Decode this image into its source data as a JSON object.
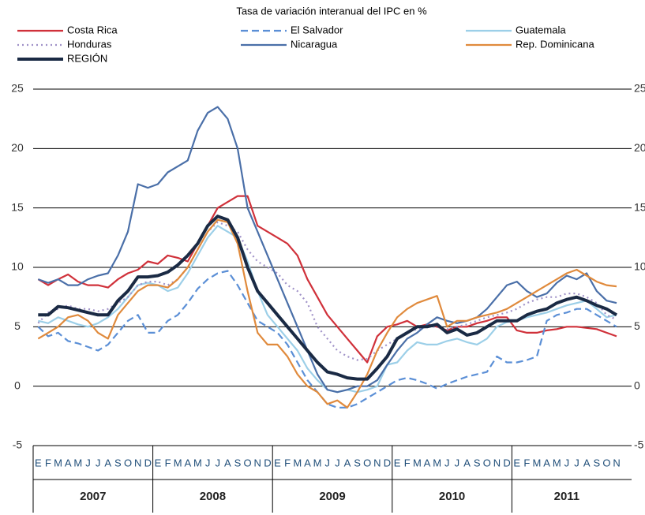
{
  "chart_data": {
    "type": "line",
    "title": "Tasa de variación interanual del IPC en %",
    "categories": [
      "E",
      "F",
      "M",
      "A",
      "M",
      "J",
      "J",
      "A",
      "S",
      "O",
      "N",
      "D",
      "E",
      "F",
      "M",
      "A",
      "M",
      "J",
      "J",
      "A",
      "S",
      "O",
      "N",
      "D",
      "E",
      "F",
      "M",
      "A",
      "M",
      "J",
      "J",
      "A",
      "S",
      "O",
      "N",
      "D",
      "E",
      "F",
      "M",
      "A",
      "M",
      "J",
      "J",
      "A",
      "S",
      "O",
      "N",
      "D",
      "E",
      "F",
      "M",
      "A",
      "M",
      "J",
      "J",
      "A",
      "S",
      "O",
      "N"
    ],
    "years": [
      "2007",
      "2008",
      "2009",
      "2010",
      "2011"
    ],
    "ylim": [
      -5,
      25
    ],
    "yticks": [
      -5,
      0,
      5,
      10,
      15,
      20,
      25
    ],
    "y2lim": [
      -5,
      25
    ],
    "y2ticks": [
      -5,
      0,
      5,
      10,
      15,
      20,
      25
    ],
    "grid": true,
    "series": [
      {
        "name": "Costa Rica",
        "color": "#d0313a",
        "dash": "solid",
        "values": [
          9,
          8.5,
          9,
          9.4,
          8.8,
          8.5,
          8.5,
          8.3,
          9,
          9.5,
          9.8,
          10.5,
          10.3,
          11,
          10.8,
          10.5,
          12,
          13.5,
          15,
          15.5,
          16,
          16,
          13.5,
          13,
          12.5,
          12,
          11,
          9,
          7.5,
          6,
          5,
          4,
          3,
          2,
          4.2,
          5,
          5.2,
          5.5,
          5,
          5.2,
          5,
          4.7,
          5,
          5,
          5.3,
          5.5,
          5.8,
          5.8,
          4.7,
          4.5,
          4.5,
          4.7,
          4.8,
          5,
          5,
          4.9,
          4.8,
          4.5,
          4.2
        ]
      },
      {
        "name": "El Salvador",
        "color": "#5b8fd6",
        "dash": "dashed",
        "values": [
          5,
          4.2,
          4.5,
          3.8,
          3.6,
          3.3,
          3,
          3.5,
          4.5,
          5.5,
          6,
          4.5,
          4.5,
          5.5,
          6,
          7,
          8.2,
          9,
          9.5,
          9.7,
          8.5,
          7,
          5.5,
          5,
          4.5,
          3.5,
          2,
          0.5,
          -0.5,
          -1.5,
          -1.8,
          -1.8,
          -1.5,
          -1,
          -0.5,
          0,
          0.5,
          0.7,
          0.5,
          0.2,
          -0.2,
          0.2,
          0.5,
          0.8,
          1,
          1.2,
          2.5,
          2,
          2,
          2.2,
          2.5,
          5.5,
          6,
          6.2,
          6.5,
          6.5,
          6,
          5.5,
          5
        ]
      },
      {
        "name": "Guatemala",
        "color": "#9ccfe8",
        "dash": "solid",
        "values": [
          5.5,
          5.3,
          5.8,
          5.5,
          5.2,
          5,
          5.3,
          5.8,
          6.5,
          7.5,
          8.5,
          8.7,
          8.5,
          8,
          8.3,
          9.5,
          11,
          12.5,
          13.5,
          13,
          12.5,
          10.5,
          8,
          6,
          5,
          4,
          3,
          1.5,
          0.5,
          -0.3,
          -0.5,
          -0.3,
          -0.5,
          -0.3,
          0,
          1.8,
          2,
          3,
          3.7,
          3.5,
          3.5,
          3.8,
          4,
          3.7,
          3.5,
          4,
          5,
          5.4,
          5.5,
          5.8,
          6,
          6.2,
          6.5,
          6.8,
          7,
          7.2,
          6.5,
          5.8,
          6
        ]
      },
      {
        "name": "Honduras",
        "color": "#a092c8",
        "dash": "dotted",
        "values": [
          5.3,
          6.2,
          6.5,
          6.8,
          6.5,
          6.5,
          6.3,
          6.5,
          7,
          7.5,
          8.5,
          8.8,
          8.8,
          8.5,
          9,
          10,
          11.5,
          13,
          13.8,
          13.5,
          13,
          11.5,
          10.5,
          10,
          9.5,
          8.5,
          8,
          7,
          5,
          4,
          3,
          2.5,
          2.2,
          2.3,
          3,
          3.5,
          4,
          4.5,
          4.8,
          5,
          5,
          4.8,
          5,
          5.2,
          5.5,
          5.8,
          6,
          6.2,
          6.5,
          7,
          7.3,
          7.5,
          7.5,
          7.8,
          7.8,
          7.5,
          7,
          6,
          5.6
        ]
      },
      {
        "name": "Nicaragua",
        "color": "#4a6fa8",
        "dash": "solid",
        "values": [
          9,
          8.7,
          9,
          8.5,
          8.5,
          9,
          9.3,
          9.5,
          11,
          13,
          17,
          16.7,
          17,
          18,
          18.5,
          19,
          21.5,
          23,
          23.5,
          22.5,
          20,
          15,
          13,
          11,
          9,
          7,
          5,
          3,
          1,
          -0.3,
          -0.5,
          -0.3,
          0,
          0,
          0.5,
          1.8,
          3,
          4,
          4.5,
          5.2,
          5.8,
          5.5,
          5.3,
          5.5,
          5.8,
          6.5,
          7.5,
          8.5,
          8.8,
          8,
          7.5,
          7.8,
          8.7,
          9.3,
          9,
          9.5,
          8,
          7.2,
          7
        ]
      },
      {
        "name": "Rep. Dominicana",
        "color": "#e08a3c",
        "dash": "solid",
        "values": [
          4,
          4.5,
          5,
          5.8,
          6,
          5.5,
          4.5,
          4,
          6,
          7,
          8,
          8.5,
          8.5,
          8.3,
          9,
          10,
          11.5,
          13,
          14,
          13.8,
          12,
          8,
          4.5,
          3.5,
          3.5,
          2.5,
          1,
          0,
          -0.5,
          -1.5,
          -1.2,
          -1.8,
          -0.5,
          1,
          3,
          4.5,
          5.8,
          6.5,
          7,
          7.3,
          7.6,
          5,
          5.5,
          5.5,
          5.8,
          6,
          6.2,
          6.5,
          7,
          7.5,
          8,
          8.5,
          9,
          9.5,
          9.8,
          9.3,
          8.8,
          8.5,
          8.4
        ]
      },
      {
        "name": "REGIÓN",
        "color": "#1a2a44",
        "dash": "solid",
        "bold": true,
        "values": [
          6,
          6,
          6.7,
          6.6,
          6.4,
          6.2,
          6,
          6,
          7.2,
          8,
          9.2,
          9.2,
          9.3,
          9.6,
          10.2,
          11,
          12,
          13.5,
          14.3,
          14,
          12.5,
          10,
          8,
          7,
          6,
          5,
          4,
          3,
          2,
          1.2,
          1,
          0.7,
          0.6,
          0.6,
          1.5,
          2.5,
          4,
          4.5,
          5,
          5,
          5.2,
          4.5,
          4.8,
          4.3,
          4.5,
          5,
          5.5,
          5.5,
          5.5,
          6,
          6.3,
          6.5,
          7,
          7.3,
          7.5,
          7.2,
          6.8,
          6.5,
          6
        ]
      }
    ]
  }
}
